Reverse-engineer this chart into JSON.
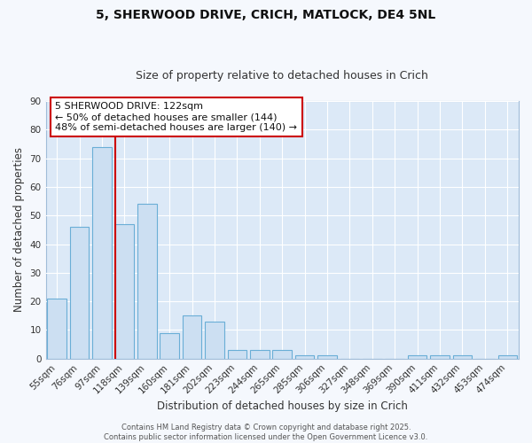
{
  "title": "5, SHERWOOD DRIVE, CRICH, MATLOCK, DE4 5NL",
  "subtitle": "Size of property relative to detached houses in Crich",
  "xlabel": "Distribution of detached houses by size in Crich",
  "ylabel": "Number of detached properties",
  "categories": [
    "55sqm",
    "76sqm",
    "97sqm",
    "118sqm",
    "139sqm",
    "160sqm",
    "181sqm",
    "202sqm",
    "223sqm",
    "244sqm",
    "265sqm",
    "285sqm",
    "306sqm",
    "327sqm",
    "348sqm",
    "369sqm",
    "390sqm",
    "411sqm",
    "432sqm",
    "453sqm",
    "474sqm"
  ],
  "values": [
    21,
    46,
    74,
    47,
    54,
    9,
    15,
    13,
    3,
    3,
    3,
    1,
    1,
    0,
    0,
    0,
    1,
    1,
    1,
    0,
    1
  ],
  "bar_color": "#ccdff2",
  "bar_edge_color": "#6aaed6",
  "bar_width": 0.85,
  "red_line_x": 2.57,
  "annotation_line1": "5 SHERWOOD DRIVE: 122sqm",
  "annotation_line2": "← 50% of detached houses are smaller (144)",
  "annotation_line3": "48% of semi-detached houses are larger (140) →",
  "annotation_box_facecolor": "#ffffff",
  "annotation_box_edgecolor": "#cc0000",
  "ylim": [
    0,
    90
  ],
  "yticks": [
    0,
    10,
    20,
    30,
    40,
    50,
    60,
    70,
    80,
    90
  ],
  "fig_facecolor": "#f5f8fd",
  "ax_facecolor": "#dce9f7",
  "grid_color": "#ffffff",
  "title_fontsize": 10,
  "subtitle_fontsize": 9,
  "axis_label_fontsize": 8.5,
  "tick_fontsize": 7.5,
  "annotation_fontsize": 8,
  "footer_fontsize": 6,
  "footer": "Contains HM Land Registry data © Crown copyright and database right 2025.\nContains public sector information licensed under the Open Government Licence v3.0."
}
